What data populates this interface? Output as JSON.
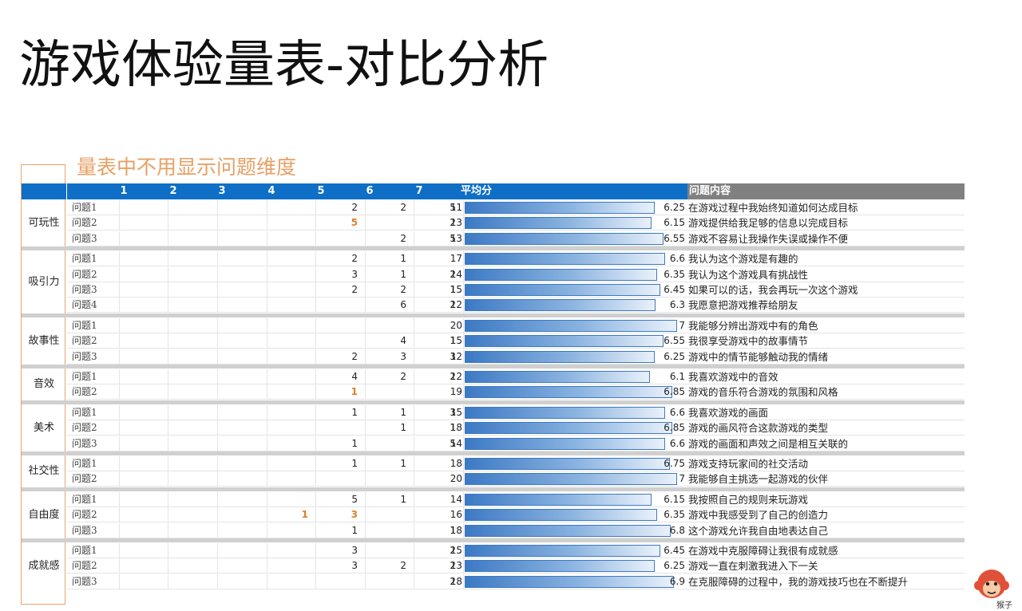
{
  "title": "游戏体验量表-对比分析",
  "subtitle": "量表中不用显示问题维度",
  "header": {
    "scale": [
      "1",
      "2",
      "3",
      "4",
      "5",
      "6",
      "7"
    ],
    "avg_label": "平均分",
    "content_label": "问题内容"
  },
  "groups": [
    {
      "label": "可玩性",
      "rows": [
        {
          "q": "问题1",
          "counts": [
            "",
            "",
            "",
            "",
            "2",
            "2",
            "5"
          ],
          "orange": [],
          "total": "11",
          "avg": "6.25",
          "avg_value": 6.25,
          "text": "在游戏过程中我始终知道如何达成目标"
        },
        {
          "q": "问题2",
          "counts": [
            "",
            "",
            "",
            "",
            "5",
            "",
            "2"
          ],
          "orange": [
            4
          ],
          "total": "13",
          "avg": "6.15",
          "avg_value": 6.15,
          "text": "游戏提供给我足够的信息以完成目标"
        },
        {
          "q": "问题3",
          "counts": [
            "",
            "",
            "",
            "",
            "",
            "2",
            "5"
          ],
          "orange": [],
          "total": "13",
          "avg": "6.55",
          "avg_value": 6.55,
          "text": "游戏不容易让我操作失误或操作不便"
        }
      ]
    },
    {
      "label": "吸引力",
      "rows": [
        {
          "q": "问题1",
          "counts": [
            "",
            "",
            "",
            "",
            "2",
            "1",
            ""
          ],
          "orange": [],
          "total": "17",
          "avg": "6.6",
          "avg_value": 6.6,
          "text": "我认为这个游戏是有趣的"
        },
        {
          "q": "问题2",
          "counts": [
            "",
            "",
            "",
            "",
            "3",
            "1",
            "2"
          ],
          "orange": [],
          "total": "14",
          "avg": "6.35",
          "avg_value": 6.35,
          "text": "我认为这个游戏具有挑战性"
        },
        {
          "q": "问题3",
          "counts": [
            "",
            "",
            "",
            "",
            "2",
            "2",
            "1"
          ],
          "orange": [],
          "total": "15",
          "avg": "6.45",
          "avg_value": 6.45,
          "text": "如果可以的话，我会再玩一次这个游戏"
        },
        {
          "q": "问题4",
          "counts": [
            "",
            "",
            "",
            "",
            "",
            "6",
            "2"
          ],
          "orange": [],
          "total": "12",
          "avg": "6.3",
          "avg_value": 6.3,
          "text": "我愿意把游戏推荐给朋友"
        }
      ]
    },
    {
      "label": "故事性",
      "rows": [
        {
          "q": "问题1",
          "counts": [
            "",
            "",
            "",
            "",
            "",
            "",
            ""
          ],
          "orange": [],
          "total": "20",
          "avg": "7",
          "avg_value": 7,
          "text": "我能够分辨出游戏中有的角色"
        },
        {
          "q": "问题2",
          "counts": [
            "",
            "",
            "",
            "",
            "",
            "4",
            "1"
          ],
          "orange": [],
          "total": "15",
          "avg": "6.55",
          "avg_value": 6.55,
          "text": "我很享受游戏中的故事情节"
        },
        {
          "q": "问题3",
          "counts": [
            "",
            "",
            "",
            "",
            "2",
            "3",
            "3"
          ],
          "orange": [],
          "total": "12",
          "avg": "6.25",
          "avg_value": 6.25,
          "text": "游戏中的情节能够触动我的情绪"
        }
      ]
    },
    {
      "label": "音效",
      "rows": [
        {
          "q": "问题1",
          "counts": [
            "",
            "",
            "",
            "",
            "4",
            "2",
            "2"
          ],
          "orange": [],
          "total": "12",
          "avg": "6.1",
          "avg_value": 6.1,
          "text": "我喜欢游戏中的音效"
        },
        {
          "q": "问题2",
          "counts": [
            "",
            "",
            "",
            "",
            "1",
            "",
            ""
          ],
          "orange": [
            4
          ],
          "total": "19",
          "avg": "6.85",
          "avg_value": 6.85,
          "text": "游戏的音乐符合游戏的氛围和风格"
        }
      ]
    },
    {
      "label": "美术",
      "rows": [
        {
          "q": "问题1",
          "counts": [
            "",
            "",
            "",
            "",
            "1",
            "1",
            "3"
          ],
          "orange": [],
          "total": "15",
          "avg": "6.6",
          "avg_value": 6.6,
          "text": "我喜欢游戏的画面"
        },
        {
          "q": "问题2",
          "counts": [
            "",
            "",
            "",
            "",
            "",
            "1",
            "1"
          ],
          "orange": [],
          "total": "18",
          "avg": "6.85",
          "avg_value": 6.85,
          "text": "游戏的画风符合这款游戏的类型"
        },
        {
          "q": "问题3",
          "counts": [
            "",
            "",
            "",
            "",
            "1",
            "",
            "5"
          ],
          "orange": [],
          "total": "14",
          "avg": "6.6",
          "avg_value": 6.6,
          "text": "游戏的画面和声效之间是相互关联的"
        }
      ]
    },
    {
      "label": "社交性",
      "rows": [
        {
          "q": "问题1",
          "counts": [
            "",
            "",
            "",
            "",
            "1",
            "1",
            ""
          ],
          "orange": [],
          "total": "18",
          "avg": "6.75",
          "avg_value": 6.75,
          "text": "游戏支持玩家间的社交活动"
        },
        {
          "q": "问题2",
          "counts": [
            "",
            "",
            "",
            "",
            "",
            "",
            ""
          ],
          "orange": [],
          "total": "20",
          "avg": "7",
          "avg_value": 7,
          "text": "我能够自主挑选一起游戏的伙伴"
        }
      ]
    },
    {
      "label": "自由度",
      "rows": [
        {
          "q": "问题1",
          "counts": [
            "",
            "",
            "",
            "",
            "5",
            "1",
            ""
          ],
          "orange": [],
          "total": "14",
          "avg": "6.15",
          "avg_value": 6.15,
          "text": "我按照自己的规则来玩游戏"
        },
        {
          "q": "问题2",
          "counts": [
            "",
            "",
            "",
            "1",
            "3",
            "",
            ""
          ],
          "orange": [
            3,
            4
          ],
          "total": "16",
          "avg": "6.35",
          "avg_value": 6.35,
          "text": "游戏中我感受到了自己的创造力"
        },
        {
          "q": "问题3",
          "counts": [
            "",
            "",
            "",
            "",
            "1",
            "",
            "1"
          ],
          "orange": [],
          "total": "18",
          "avg": "6.8",
          "avg_value": 6.8,
          "text": "这个游戏允许我自由地表达自己"
        }
      ]
    },
    {
      "label": "成就感",
      "rows": [
        {
          "q": "问题1",
          "counts": [
            "",
            "",
            "",
            "",
            "3",
            "",
            "2"
          ],
          "orange": [],
          "total": "15",
          "avg": "6.45",
          "avg_value": 6.45,
          "text": "在游戏中克服障碍让我很有成就感"
        },
        {
          "q": "问题2",
          "counts": [
            "",
            "",
            "",
            "",
            "3",
            "2",
            "2"
          ],
          "orange": [],
          "total": "13",
          "avg": "6.25",
          "avg_value": 6.25,
          "text": "游戏一直在刺激我进入下一关"
        },
        {
          "q": "问题3",
          "counts": [
            "",
            "",
            "",
            "",
            "",
            "",
            "2"
          ],
          "orange": [],
          "total": "18",
          "avg": "6.9",
          "avg_value": 6.9,
          "text": "在克服障碍的过程中，我的游戏技巧也在不断提升"
        }
      ]
    }
  ],
  "logo_text": "猴子",
  "colors": {
    "header_blue": "#0f6fc6",
    "header_gray": "#808080",
    "accent_orange": "#e07f2a",
    "bar_blue": "#3c79c4"
  }
}
